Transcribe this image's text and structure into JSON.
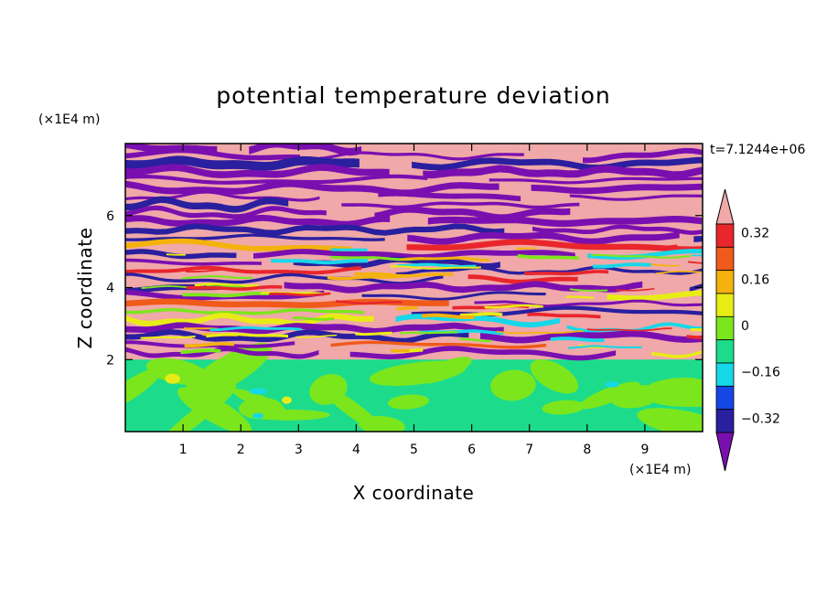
{
  "chart_data": {
    "type": "heatmap",
    "title": "potential temperature deviation",
    "xlabel": "X coordinate",
    "ylabel": "Z coordinate",
    "x_unit": "(×1E4 m)",
    "y_unit": "(×1E4 m)",
    "time_label": "t=7.1244e+06",
    "xlim": [
      0,
      10
    ],
    "ylim": [
      0,
      8
    ],
    "x_ticks": [
      1,
      2,
      3,
      4,
      5,
      6,
      7,
      8,
      9
    ],
    "y_ticks": [
      2,
      4,
      6
    ],
    "colorbar": {
      "levels": [
        -0.4,
        -0.32,
        -0.24,
        -0.16,
        -0.08,
        0,
        0.08,
        0.16,
        0.24,
        0.32,
        0.4
      ],
      "tick_labels": [
        "0.32",
        "0.16",
        "0",
        "−0.16",
        "−0.32"
      ],
      "tick_values": [
        0.32,
        0.16,
        0,
        -0.16,
        -0.32
      ],
      "colors": [
        "#7a0fb0",
        "#2a1f9e",
        "#1547e6",
        "#16d8e8",
        "#1cdc8c",
        "#7ce61c",
        "#e8ec15",
        "#f4b20c",
        "#f05a1a",
        "#e8262c",
        "#f0a8a8"
      ]
    },
    "description_regions": {
      "lower_layer_z": [
        0,
        2
      ],
      "upper_layer_z": [
        2,
        8
      ]
    }
  }
}
